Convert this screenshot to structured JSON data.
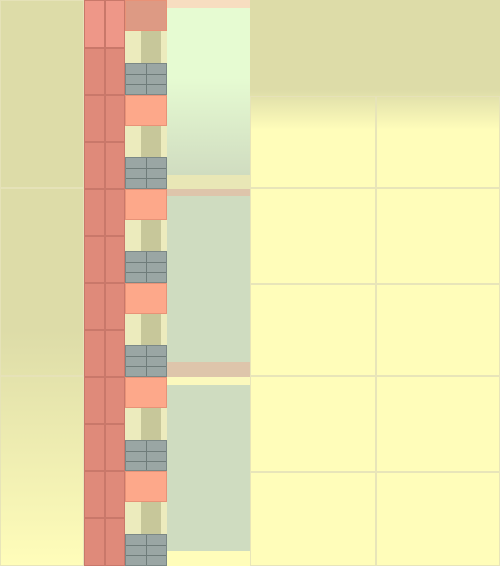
{
  "palette": {
    "background": "#fffdba",
    "header_band": "#dddca8",
    "red_column": "#df8a7a",
    "orange_block": "#fda88a",
    "grid_block": "#9aa6a4",
    "panel_green": "#cfdcc0",
    "panel_light": "#e6fbd2",
    "divider_tan": "#dec5ab"
  },
  "icons": [
    "grid-icon"
  ]
}
